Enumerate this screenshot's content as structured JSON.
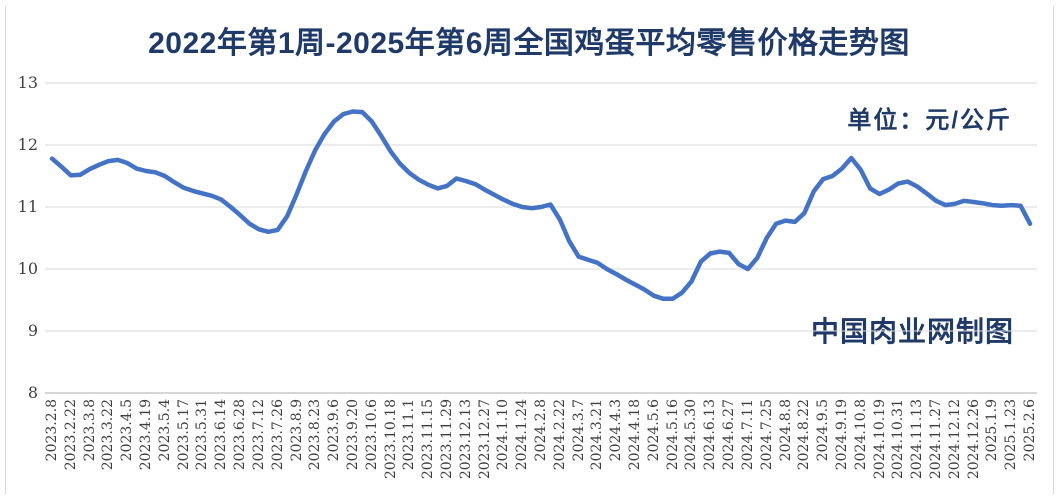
{
  "title": "2022年第1周-2025年第6周全国鸡蛋平均零售价格走势图",
  "unit_label": "单位：元/公斤",
  "watermark": "中国肉业网制图",
  "colors": {
    "series_line": "#4472C4",
    "heading_text": "#1f3a68",
    "gridline": "#d9d9d9",
    "axis_line": "#adadad",
    "tick_text": "#3f3f3f"
  },
  "chart_data": {
    "type": "line",
    "title": "2022年第1周-2025年第6周全国鸡蛋平均零售价格走势图",
    "ylabel": "元/公斤",
    "ylim": [
      8,
      13
    ],
    "y_ticks": [
      8,
      9,
      10,
      11,
      12,
      13
    ],
    "grid": true,
    "legend": "none",
    "x_label_every": 2,
    "x_labels": [
      "2023.2.8",
      "2023.2.22",
      "2023.3.8",
      "2023.3.22",
      "2023.4.5",
      "2023.4.19",
      "2023.5.4",
      "2023.5.17",
      "2023.5.31",
      "2023.6.14",
      "2023.6.28",
      "2023.7.12",
      "2023.7.26",
      "2023.8.9",
      "2023.8.23",
      "2023.9.6",
      "2023.9.20",
      "2023.10.6",
      "2023.10.18",
      "2023.11.1",
      "2023.11.15",
      "2023.11.29",
      "2023.12.13",
      "2023.12.27",
      "2024.1.10",
      "2024.1.24",
      "2024.2.8",
      "2024.2.22",
      "2024.3.7",
      "2024.3.21",
      "2024.4.3",
      "2024.4.18",
      "2024.5.6",
      "2024.5.16",
      "2024.5.30",
      "2024.6.13",
      "2024.6.27",
      "2024.7.11",
      "2024.7.25",
      "2024.8.8",
      "2024.8.22",
      "2024.9.5",
      "2024.9.19",
      "2024.10.8",
      "2024.10.19",
      "2024.10.31",
      "2024.11.13",
      "2024.11.27",
      "2024.12.12",
      "2024.12.26",
      "2025.1.9",
      "2025.1.23",
      "2025.2.6"
    ],
    "values": [
      11.78,
      11.65,
      11.51,
      11.52,
      11.61,
      11.68,
      11.74,
      11.76,
      11.71,
      11.62,
      11.58,
      11.56,
      11.5,
      11.4,
      11.31,
      11.26,
      11.22,
      11.18,
      11.12,
      11.0,
      10.87,
      10.73,
      10.64,
      10.6,
      10.63,
      10.85,
      11.2,
      11.58,
      11.92,
      12.18,
      12.38,
      12.5,
      12.54,
      12.53,
      12.38,
      12.15,
      11.9,
      11.7,
      11.55,
      11.44,
      11.36,
      11.3,
      11.34,
      11.46,
      11.42,
      11.37,
      11.28,
      11.2,
      11.12,
      11.05,
      11.0,
      10.98,
      11.0,
      11.04,
      10.8,
      10.45,
      10.2,
      10.15,
      10.1,
      10.0,
      9.92,
      9.83,
      9.75,
      9.67,
      9.57,
      9.52,
      9.52,
      9.62,
      9.8,
      10.12,
      10.25,
      10.28,
      10.26,
      10.08,
      10.0,
      10.18,
      10.5,
      10.73,
      10.78,
      10.76,
      10.9,
      11.25,
      11.45,
      11.5,
      11.62,
      11.79,
      11.6,
      11.3,
      11.21,
      11.28,
      11.38,
      11.41,
      11.33,
      11.22,
      11.1,
      11.03,
      11.05,
      11.1,
      11.08,
      11.06,
      11.03,
      11.02,
      11.03,
      11.02,
      10.73
    ]
  }
}
